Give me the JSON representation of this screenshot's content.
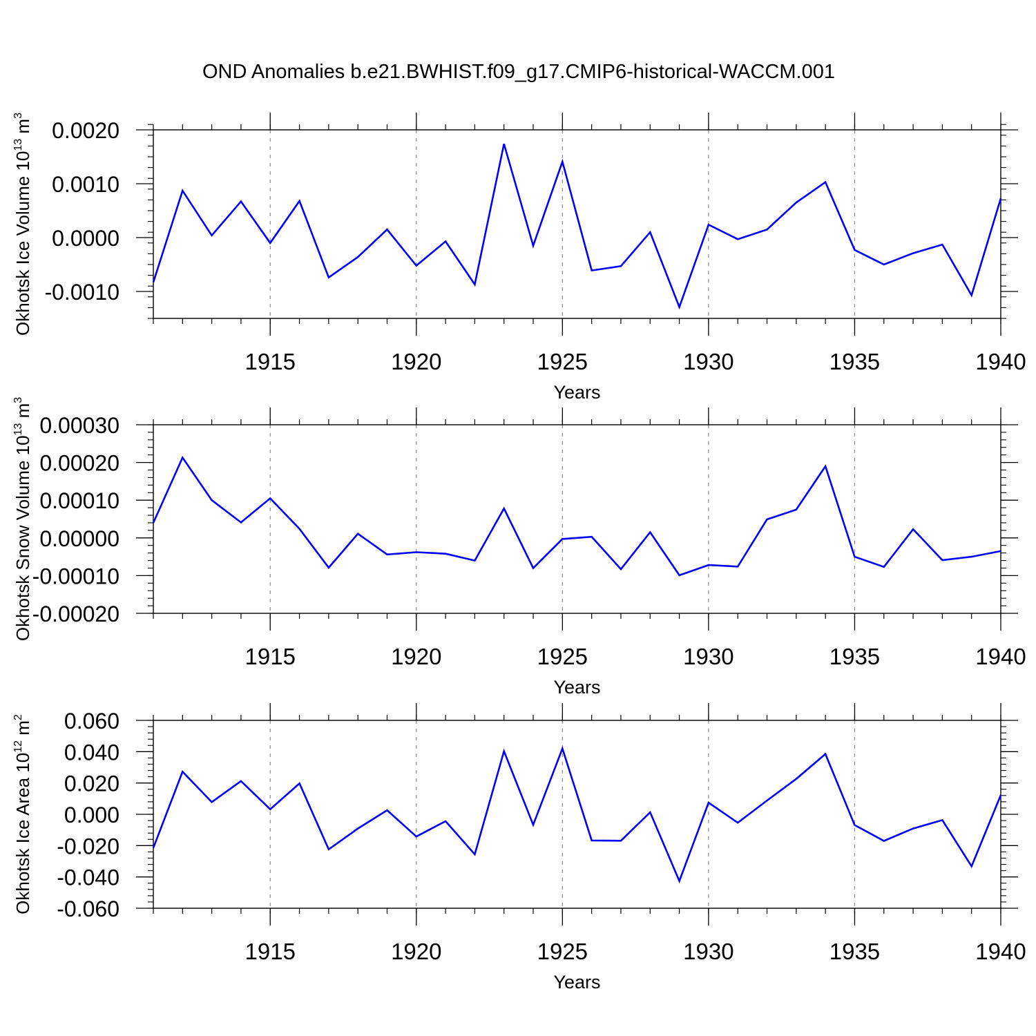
{
  "title": "OND Anomalies b.e21.BWHIST.f09_g17.CMIP6-historical-WACCM.001",
  "colors": {
    "line": "#0000ff",
    "axis": "#000000",
    "grid": "#888888"
  },
  "chart_data": [
    {
      "type": "line",
      "ylabel_main": "Okhotsk Ice Volume 10",
      "ylabel_exp": "13",
      "ylabel_unit": " m",
      "ylabel_unit_exp": "3",
      "xlabel": "Years",
      "xlim": [
        1911,
        1940
      ],
      "ylim": [
        -0.0015,
        0.002
      ],
      "yticks": [
        -0.001,
        0.0,
        0.001,
        0.002
      ],
      "ytick_labels": [
        "-0.0010",
        "0.0000",
        "0.0010",
        "0.0020"
      ],
      "ytick_minor_step": 0.0002,
      "xticks": [
        1915,
        1920,
        1925,
        1930,
        1935,
        1940
      ],
      "xtick_labels": [
        "1915",
        "1920",
        "1925",
        "1930",
        "1935",
        "1940"
      ],
      "grid": "vertical dashed at major x ticks",
      "x": [
        1911,
        1912,
        1913,
        1914,
        1915,
        1916,
        1917,
        1918,
        1919,
        1920,
        1921,
        1922,
        1923,
        1924,
        1925,
        1926,
        1927,
        1928,
        1929,
        1930,
        1931,
        1932,
        1933,
        1934,
        1935,
        1936,
        1937,
        1938,
        1939,
        1940
      ],
      "series": [
        {
          "values": [
            -0.00083,
            0.00087,
            4e-05,
            0.00067,
            -0.0001,
            0.00068,
            -0.00074,
            -0.00036,
            0.00015,
            -0.00052,
            -7e-05,
            -0.00087,
            0.00174,
            -0.00015,
            0.00141,
            -0.00061,
            -0.00053,
            0.0001,
            -0.00129,
            0.00024,
            -3e-05,
            0.00015,
            0.00065,
            0.00103,
            -0.00023,
            -0.0005,
            -0.00029,
            -0.00013,
            -0.00107,
            0.00073
          ]
        }
      ]
    },
    {
      "type": "line",
      "ylabel_main": "Okhotsk Snow Volume 10",
      "ylabel_exp": "13",
      "ylabel_unit": " m",
      "ylabel_unit_exp": "3",
      "xlabel": "Years",
      "xlim": [
        1911,
        1940
      ],
      "ylim": [
        -0.0002,
        0.0003
      ],
      "yticks": [
        -0.0002,
        -0.0001,
        0.0,
        0.0001,
        0.0002,
        0.0003
      ],
      "ytick_labels": [
        "-0.00020",
        "-0.00010",
        "0.00000",
        "0.00010",
        "0.00020",
        "0.00030"
      ],
      "ytick_minor_step": 2e-05,
      "xticks": [
        1915,
        1920,
        1925,
        1930,
        1935,
        1940
      ],
      "xtick_labels": [
        "1915",
        "1920",
        "1925",
        "1930",
        "1935",
        "1940"
      ],
      "grid": "vertical dashed at major x ticks",
      "x": [
        1911,
        1912,
        1913,
        1914,
        1915,
        1916,
        1917,
        1918,
        1919,
        1920,
        1921,
        1922,
        1923,
        1924,
        1925,
        1926,
        1927,
        1928,
        1929,
        1930,
        1931,
        1932,
        1933,
        1934,
        1935,
        1936,
        1937,
        1938,
        1939,
        1940
      ],
      "series": [
        {
          "values": [
            4e-05,
            0.000213,
            0.0001,
            4.1e-05,
            0.000105,
            2.4e-05,
            -7.9e-05,
            1.1e-05,
            -4.4e-05,
            -3.8e-05,
            -4.2e-05,
            -6e-05,
            7.8e-05,
            -8e-05,
            -3e-06,
            3e-06,
            -8.3e-05,
            1.5e-05,
            -9.9e-05,
            -7.2e-05,
            -7.6e-05,
            4.9e-05,
            7.5e-05,
            0.00019,
            -5e-05,
            -7.7e-05,
            2.3e-05,
            -5.9e-05,
            -5e-05,
            -3.5e-05
          ]
        }
      ]
    },
    {
      "type": "line",
      "ylabel_main": "Okhotsk Ice Area 10",
      "ylabel_exp": "12",
      "ylabel_unit": " m",
      "ylabel_unit_exp": "2",
      "xlabel": "Years",
      "xlim": [
        1911,
        1940
      ],
      "ylim": [
        -0.06,
        0.06
      ],
      "yticks": [
        -0.06,
        -0.04,
        -0.02,
        0.0,
        0.02,
        0.04,
        0.06
      ],
      "ytick_labels": [
        "-0.060",
        "-0.040",
        "-0.020",
        "0.000",
        "0.020",
        "0.040",
        "0.060"
      ],
      "ytick_minor_step": 0.004,
      "xticks": [
        1915,
        1920,
        1925,
        1930,
        1935,
        1940
      ],
      "xtick_labels": [
        "1915",
        "1920",
        "1925",
        "1930",
        "1935",
        "1940"
      ],
      "grid": "vertical dashed at major x ticks",
      "x": [
        1911,
        1912,
        1913,
        1914,
        1915,
        1916,
        1917,
        1918,
        1919,
        1920,
        1921,
        1922,
        1923,
        1924,
        1925,
        1926,
        1927,
        1928,
        1929,
        1930,
        1931,
        1932,
        1933,
        1934,
        1935,
        1936,
        1937,
        1938,
        1939,
        1940
      ],
      "series": [
        {
          "values": [
            -0.0215,
            0.0272,
            0.0078,
            0.0212,
            0.0032,
            0.0197,
            -0.0224,
            -0.0091,
            0.0026,
            -0.0142,
            -0.0044,
            -0.0256,
            0.0403,
            -0.0067,
            0.042,
            -0.0167,
            -0.0169,
            0.0013,
            -0.0426,
            0.0074,
            -0.0054,
            0.0088,
            0.0226,
            0.0385,
            -0.0069,
            -0.017,
            -0.0091,
            -0.0037,
            -0.0332,
            0.0123
          ]
        }
      ]
    }
  ]
}
